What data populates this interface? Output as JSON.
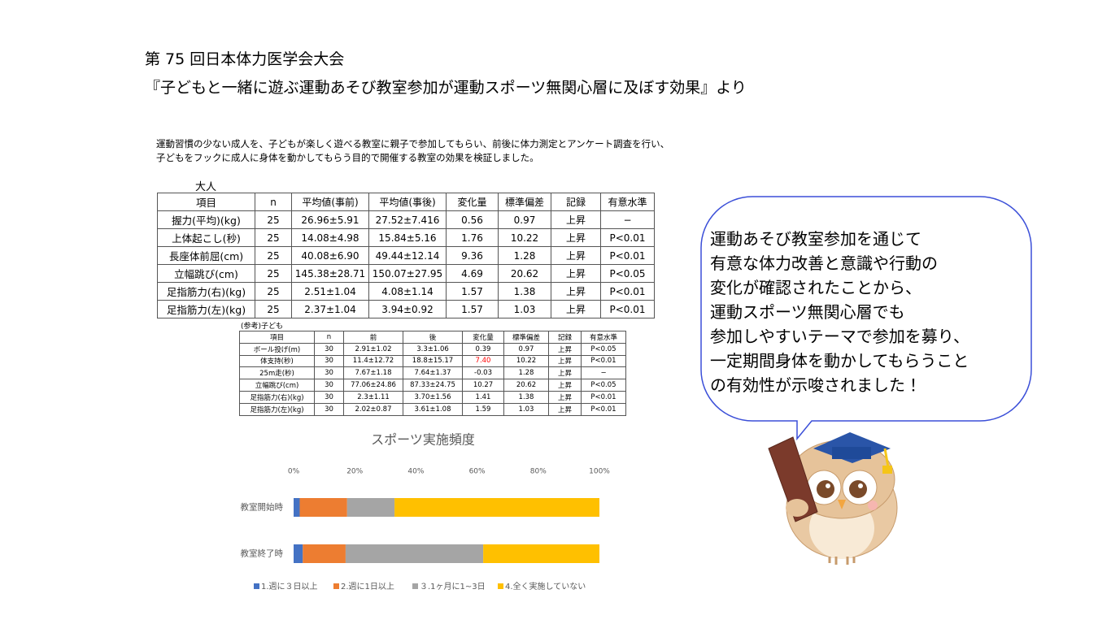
{
  "header": {
    "title": "第 75 回日本体力医学会大会",
    "subtitle": "『子どもと一緒に遊ぶ運動あそび教室参加が運動スポーツ無関心層に及ぼす効果』より"
  },
  "intro": [
    "運動習慣の少ない成人を、子どもが楽しく遊べる教室に親子で参加してもらい、前後に体力測定とアンケート調査を行い、",
    "子どもをフックに成人に身体を動かしてもらう目的で開催する教室の効果を検証しました。"
  ],
  "adult_table": {
    "caption": "大人",
    "header": [
      "項目",
      "n",
      "平均値(事前)",
      "平均値(事後)",
      "変化量",
      "標準偏差",
      "記録",
      "有意水準"
    ],
    "rows": [
      [
        "握力(平均)(kg)",
        "25",
        "26.96±5.91",
        "27.52±7.416",
        "0.56",
        "0.97",
        "上昇",
        "−"
      ],
      [
        "上体起こし(秒)",
        "25",
        "14.08±4.98",
        "15.84±5.16",
        "1.76",
        "10.22",
        "上昇",
        "P<0.01"
      ],
      [
        "長座体前屈(cm)",
        "25",
        "40.08±6.90",
        "49.44±12.14",
        "9.36",
        "1.28",
        "上昇",
        "P<0.01"
      ],
      [
        "立幅跳び(cm)",
        "25",
        "145.38±28.71",
        "150.07±27.95",
        "4.69",
        "20.62",
        "上昇",
        "P<0.05"
      ],
      [
        "足指筋力(右)(kg)",
        "25",
        "2.51±1.04",
        "4.08±1.14",
        "1.57",
        "1.38",
        "上昇",
        "P<0.01"
      ],
      [
        "足指筋力(左)(kg)",
        "25",
        "2.37±1.04",
        "3.94±0.92",
        "1.57",
        "1.03",
        "上昇",
        "P<0.01"
      ]
    ]
  },
  "child_table": {
    "caption": "(参考)子ども",
    "header": [
      "項目",
      "n",
      "前",
      "後",
      "変化量",
      "標準偏差",
      "記録",
      "有意水準"
    ],
    "rows": [
      [
        "ボール投げ(m)",
        "30",
        "2.91±1.02",
        "3.3±1.06",
        "0.39",
        "0.97",
        "上昇",
        "P<0.05"
      ],
      [
        "体支持(秒)",
        "30",
        "11.4±12.72",
        "18.8±15.17",
        "7.40",
        "10.22",
        "上昇",
        "P<0.01"
      ],
      [
        "25m走(秒)",
        "30",
        "7.67±1.18",
        "7.64±1.37",
        "-0.03",
        "1.28",
        "上昇",
        "−"
      ],
      [
        "立幅跳び(cm)",
        "30",
        "77.06±24.86",
        "87.33±24.75",
        "10.27",
        "20.62",
        "上昇",
        "P<0.05"
      ],
      [
        "足指筋力(右)(kg)",
        "30",
        "2.3±1.11",
        "3.70±1.56",
        "1.41",
        "1.38",
        "上昇",
        "P<0.01"
      ],
      [
        "足指筋力(左)(kg)",
        "30",
        "2.02±0.87",
        "3.61±1.08",
        "1.59",
        "1.03",
        "上昇",
        "P<0.01"
      ]
    ]
  },
  "chart_data": {
    "type": "stacked_bar_horizontal",
    "title": "スポーツ実施頻度",
    "categories": [
      "教室開始時",
      "教室終了時"
    ],
    "series": [
      {
        "name": "1.週に３日以上",
        "color": "#4472c4",
        "values": [
          2,
          3
        ]
      },
      {
        "name": "2.週に1日以上",
        "color": "#ed7d31",
        "values": [
          15.5,
          14
        ]
      },
      {
        "name": "３.1ヶ月に1~3日",
        "color": "#a5a5a5",
        "values": [
          15.5,
          45
        ]
      },
      {
        "name": "4.全く実施していない",
        "color": "#ffc000",
        "values": [
          67,
          38
        ]
      }
    ],
    "xlim": [
      0,
      100
    ],
    "xticks": [
      {
        "value": 0,
        "label": "0%"
      },
      {
        "value": 20,
        "label": "20%"
      },
      {
        "value": 40,
        "label": "40%"
      },
      {
        "value": 60,
        "label": "60%"
      },
      {
        "value": 80,
        "label": "80%"
      },
      {
        "value": 100,
        "label": "100%"
      }
    ],
    "grid": false,
    "legend": "bottom"
  },
  "bubble": {
    "lines": [
      "運動あそび教室参加を通じて",
      "有意な体力改善と意識や行動の",
      "変化が確認されたことから、",
      "運動スポーツ無関心層でも",
      "参加しやすいテーマで参加を募り、",
      "一定期間身体を動かしてもらうこと",
      "の有効性が示唆されました！"
    ]
  }
}
